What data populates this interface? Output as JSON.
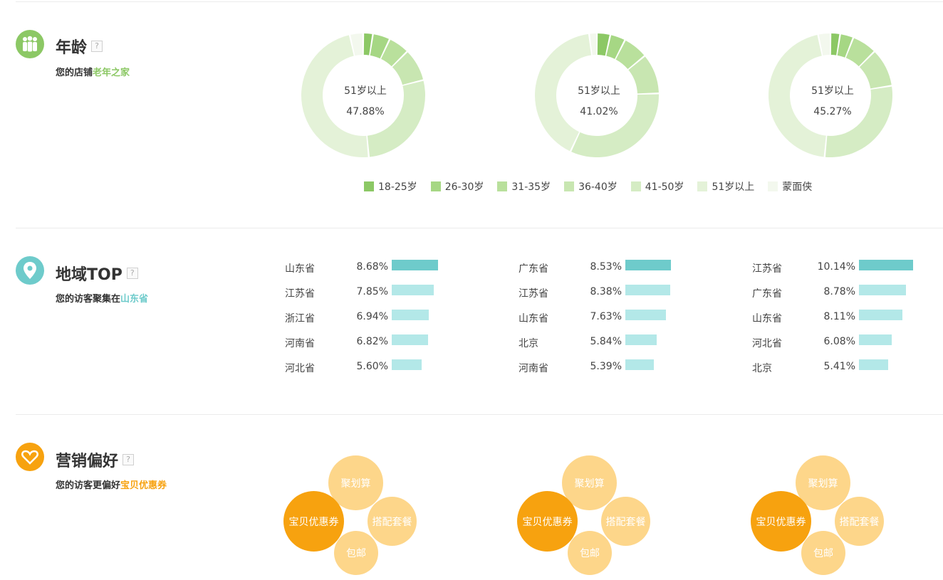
{
  "age": {
    "title": "年龄",
    "help": "?",
    "subtitle_prefix": "您的店铺",
    "subtitle_highlight": "老年之家",
    "accent": "#8cc865",
    "legend": [
      {
        "label": "18-25岁",
        "color": "#8cc865"
      },
      {
        "label": "26-30岁",
        "color": "#a6d784"
      },
      {
        "label": "31-35岁",
        "color": "#b9e09c"
      },
      {
        "label": "36-40岁",
        "color": "#c8e6b1"
      },
      {
        "label": "41-50岁",
        "color": "#d5ecc4"
      },
      {
        "label": "51岁以上",
        "color": "#e4f2d8"
      },
      {
        "label": "蒙面侠",
        "color": "#f3f8ee"
      }
    ],
    "charts": [
      {
        "center_label": "51岁以上",
        "center_value": "47.88%",
        "values": [
          2.5,
          4.5,
          5.5,
          8.5,
          27.5,
          47.88,
          3.5
        ]
      },
      {
        "center_label": "51岁以上",
        "center_value": "41.02%",
        "values": [
          3.5,
          4.0,
          6.5,
          10.5,
          32.5,
          41.02,
          2.0
        ]
      },
      {
        "center_label": "51岁以上",
        "center_value": "45.27%",
        "values": [
          2.5,
          3.5,
          6.5,
          10.0,
          29.0,
          45.27,
          3.2
        ]
      }
    ]
  },
  "region": {
    "title": "地域TOP",
    "help": "?",
    "subtitle_prefix": "您的访客聚集在",
    "subtitle_highlight": "山东省",
    "accent": "#6ecbcb",
    "bar_top_color": "#6ecbcb",
    "bar_color": "#b3e8e8",
    "columns": [
      {
        "rows": [
          {
            "name": "山东省",
            "pct": "8.68%",
            "value": 8.68
          },
          {
            "name": "江苏省",
            "pct": "7.85%",
            "value": 7.85
          },
          {
            "name": "浙江省",
            "pct": "6.94%",
            "value": 6.94
          },
          {
            "name": "河南省",
            "pct": "6.82%",
            "value": 6.82
          },
          {
            "name": "河北省",
            "pct": "5.60%",
            "value": 5.6
          }
        ]
      },
      {
        "rows": [
          {
            "name": "广东省",
            "pct": "8.53%",
            "value": 8.53
          },
          {
            "name": "江苏省",
            "pct": "8.38%",
            "value": 8.38
          },
          {
            "name": "山东省",
            "pct": "7.63%",
            "value": 7.63
          },
          {
            "name": "北京",
            "pct": "5.84%",
            "value": 5.84
          },
          {
            "name": "河南省",
            "pct": "5.39%",
            "value": 5.39
          }
        ]
      },
      {
        "rows": [
          {
            "name": "江苏省",
            "pct": "10.14%",
            "value": 10.14
          },
          {
            "name": "广东省",
            "pct": "8.78%",
            "value": 8.78
          },
          {
            "name": "山东省",
            "pct": "8.11%",
            "value": 8.11
          },
          {
            "name": "河北省",
            "pct": "6.08%",
            "value": 6.08
          },
          {
            "name": "北京",
            "pct": "5.41%",
            "value": 5.41
          }
        ]
      }
    ]
  },
  "marketing": {
    "title": "营销偏好",
    "help": "?",
    "subtitle_prefix": "您的访客更偏好",
    "subtitle_highlight": "宝贝优惠券",
    "accent": "#f7a20f",
    "light_color": "#fdd68a",
    "groups": [
      {
        "main": "宝贝优惠券",
        "top": "聚划算",
        "right": "搭配套餐",
        "bottom": "包邮"
      },
      {
        "main": "宝贝优惠券",
        "top": "聚划算",
        "right": "搭配套餐",
        "bottom": "包邮"
      },
      {
        "main": "宝贝优惠券",
        "top": "聚划算",
        "right": "搭配套餐",
        "bottom": "包邮"
      }
    ]
  }
}
